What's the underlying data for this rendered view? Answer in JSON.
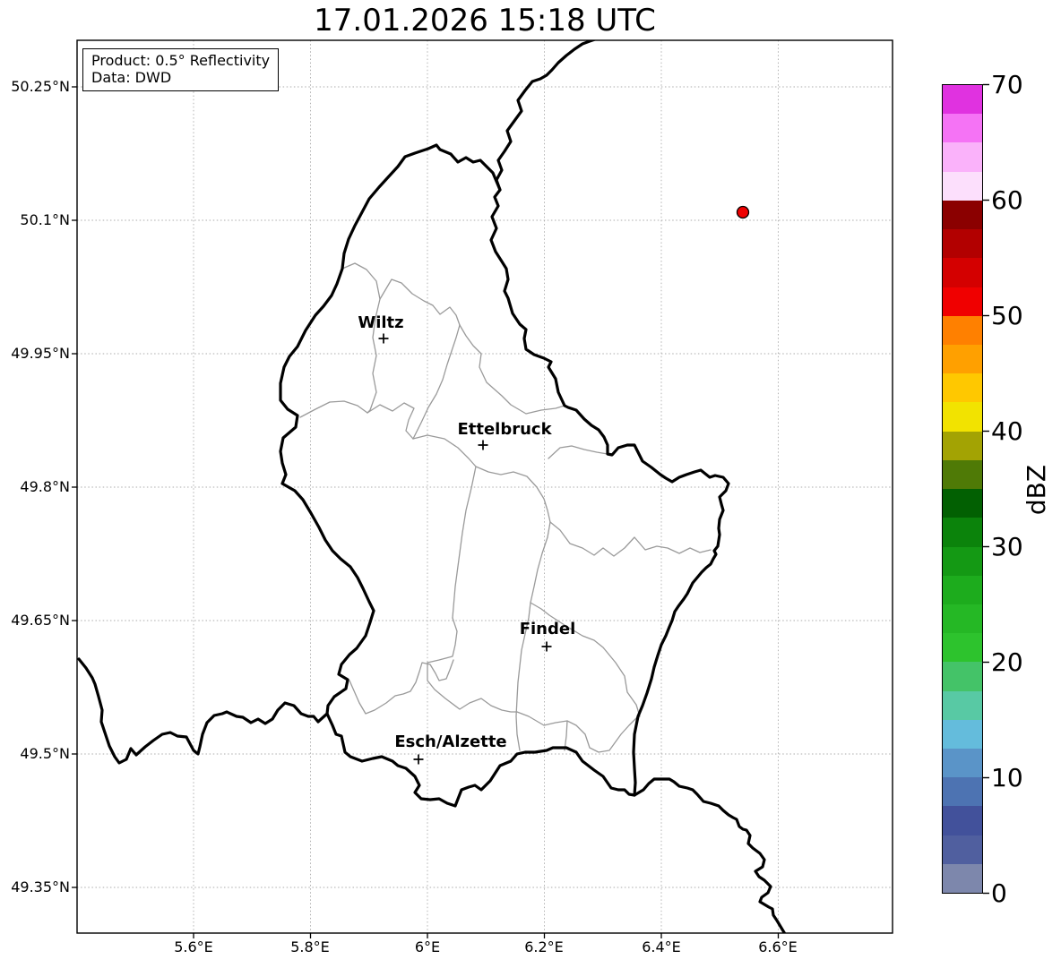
{
  "figure_title": "17.01.2026 15:18 UTC",
  "info_box": {
    "product_line": "Product: 0.5° Reflectivity",
    "data_line": "Data: DWD"
  },
  "map": {
    "y_tick_labels": [
      "50.25°N",
      "50.1°N",
      "49.95°N",
      "49.8°N",
      "49.65°N",
      "49.5°N",
      "49.35°N"
    ],
    "x_tick_labels": [
      "5.6°E",
      "5.8°E",
      "6°E",
      "6.2°E",
      "6.4°E",
      "6.6°E"
    ],
    "cities": [
      {
        "name": "Wiltz"
      },
      {
        "name": "Ettelbruck"
      },
      {
        "name": "Findel"
      },
      {
        "name": "Esch/Alzette"
      }
    ],
    "radar_site_marker": {
      "shape": "circle",
      "fill": "#ee0000",
      "edge": "#000000"
    },
    "border_colors": {
      "country": "#000000",
      "canton": "#9a9a9a"
    }
  },
  "colorbar": {
    "label": "dBZ",
    "tick_labels": [
      "70",
      "60",
      "50",
      "40",
      "30",
      "20",
      "10",
      "0"
    ],
    "range_min": 0,
    "range_max": 70,
    "band_step_dbz": 2.5,
    "colors_bottom_to_top": [
      "#7d87ac",
      "#505f9f",
      "#42519b",
      "#4d73b2",
      "#5a94c8",
      "#64bcdc",
      "#58c9a4",
      "#44c368",
      "#2dc32d",
      "#25b825",
      "#1dac1d",
      "#149914",
      "#0b830b",
      "#026002",
      "#4f7a06",
      "#a3a303",
      "#f2e300",
      "#ffc800",
      "#ffa000",
      "#ff8000",
      "#f00000",
      "#d40000",
      "#b20000",
      "#8b0000",
      "#fcdffc",
      "#fab2fa",
      "#f573f5",
      "#e032e0"
    ]
  }
}
